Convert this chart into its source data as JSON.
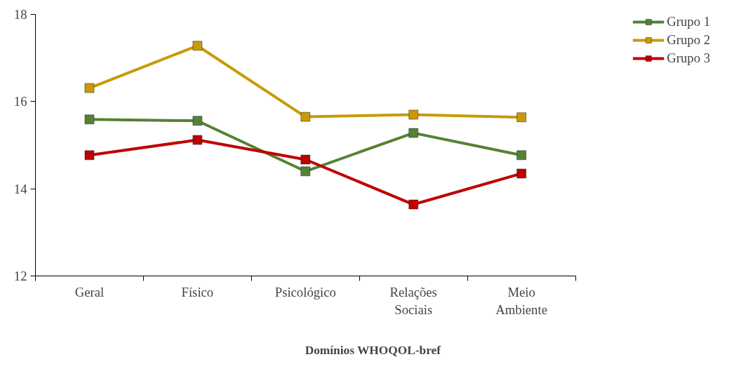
{
  "chart_data": {
    "type": "line",
    "xlabel": "Domínios WHOQOL-bref",
    "categories": [
      "Geral",
      "Físico",
      "Psicológico",
      "Relações Sociais",
      "Meio Ambiente"
    ],
    "series": [
      {
        "name": "Grupo 1",
        "color": "#548235",
        "values": [
          15.59,
          15.56,
          14.4,
          15.28,
          14.77
        ]
      },
      {
        "name": "Grupo 2",
        "color": "#c99a06",
        "values": [
          16.31,
          17.28,
          15.65,
          15.7,
          15.64
        ]
      },
      {
        "name": "Grupo 3",
        "color": "#c00000",
        "values": [
          14.77,
          15.12,
          14.67,
          13.64,
          14.35
        ]
      }
    ],
    "ylim": [
      12,
      18
    ],
    "yticks": [
      12,
      14,
      16,
      18
    ],
    "grid": false,
    "legend": "top right",
    "marker": "square",
    "line_style": "solid"
  }
}
